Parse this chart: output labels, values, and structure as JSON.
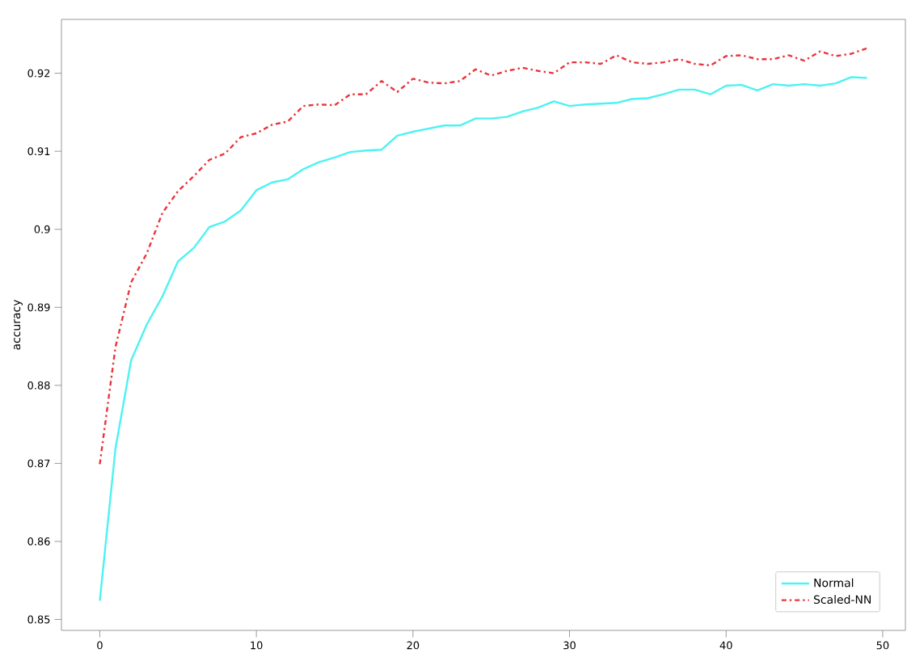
{
  "chart_data": {
    "type": "line",
    "ylabel": "accuracy",
    "x": [
      0,
      1,
      2,
      3,
      4,
      5,
      6,
      7,
      8,
      9,
      10,
      11,
      12,
      13,
      14,
      15,
      16,
      17,
      18,
      19,
      20,
      21,
      22,
      23,
      24,
      25,
      26,
      27,
      28,
      29,
      30,
      31,
      32,
      33,
      34,
      35,
      36,
      37,
      38,
      39,
      40,
      41,
      42,
      43,
      44,
      45,
      46,
      47,
      48,
      49
    ],
    "series": [
      {
        "name": "Normal",
        "color": "#4df2f2",
        "line_style": "solid",
        "values": [
          0.8524,
          0.8719,
          0.8832,
          0.8878,
          0.8914,
          0.8959,
          0.8976,
          0.9003,
          0.901,
          0.9024,
          0.905,
          0.906,
          0.9064,
          0.9077,
          0.9086,
          0.9092,
          0.9099,
          0.9101,
          0.9102,
          0.912,
          0.9125,
          0.9129,
          0.9133,
          0.9133,
          0.9142,
          0.9142,
          0.9144,
          0.9151,
          0.9156,
          0.9164,
          0.9158,
          0.916,
          0.9161,
          0.9162,
          0.9167,
          0.9168,
          0.9173,
          0.9179,
          0.9179,
          0.9173,
          0.9184,
          0.9185,
          0.9178,
          0.9186,
          0.9184,
          0.9186,
          0.9184,
          0.9187,
          0.9195,
          0.9194
        ]
      },
      {
        "name": "Scaled-NN",
        "color": "#e8353b",
        "line_style": "dashdot",
        "values": [
          0.8699,
          0.8849,
          0.8932,
          0.8969,
          0.9021,
          0.9049,
          0.9068,
          0.9089,
          0.9097,
          0.9118,
          0.9123,
          0.9134,
          0.9138,
          0.9158,
          0.916,
          0.9159,
          0.9173,
          0.9173,
          0.919,
          0.9176,
          0.9193,
          0.9188,
          0.9187,
          0.919,
          0.9205,
          0.9197,
          0.9203,
          0.9207,
          0.9203,
          0.92,
          0.9214,
          0.9214,
          0.9212,
          0.9223,
          0.9214,
          0.9212,
          0.9214,
          0.9218,
          0.9212,
          0.921,
          0.9222,
          0.9223,
          0.9218,
          0.9218,
          0.9223,
          0.9216,
          0.9228,
          0.9222,
          0.9225,
          0.9232
        ]
      }
    ],
    "xlim": [
      -2.45,
      51.45
    ],
    "ylim": [
      0.8486,
      0.9269
    ],
    "xticks": [
      0,
      10,
      20,
      30,
      40,
      50
    ],
    "yticks": [
      0.85,
      0.86,
      0.87,
      0.88,
      0.89,
      0.9,
      0.91,
      0.92
    ],
    "legend": "bottom right",
    "grid": false
  }
}
